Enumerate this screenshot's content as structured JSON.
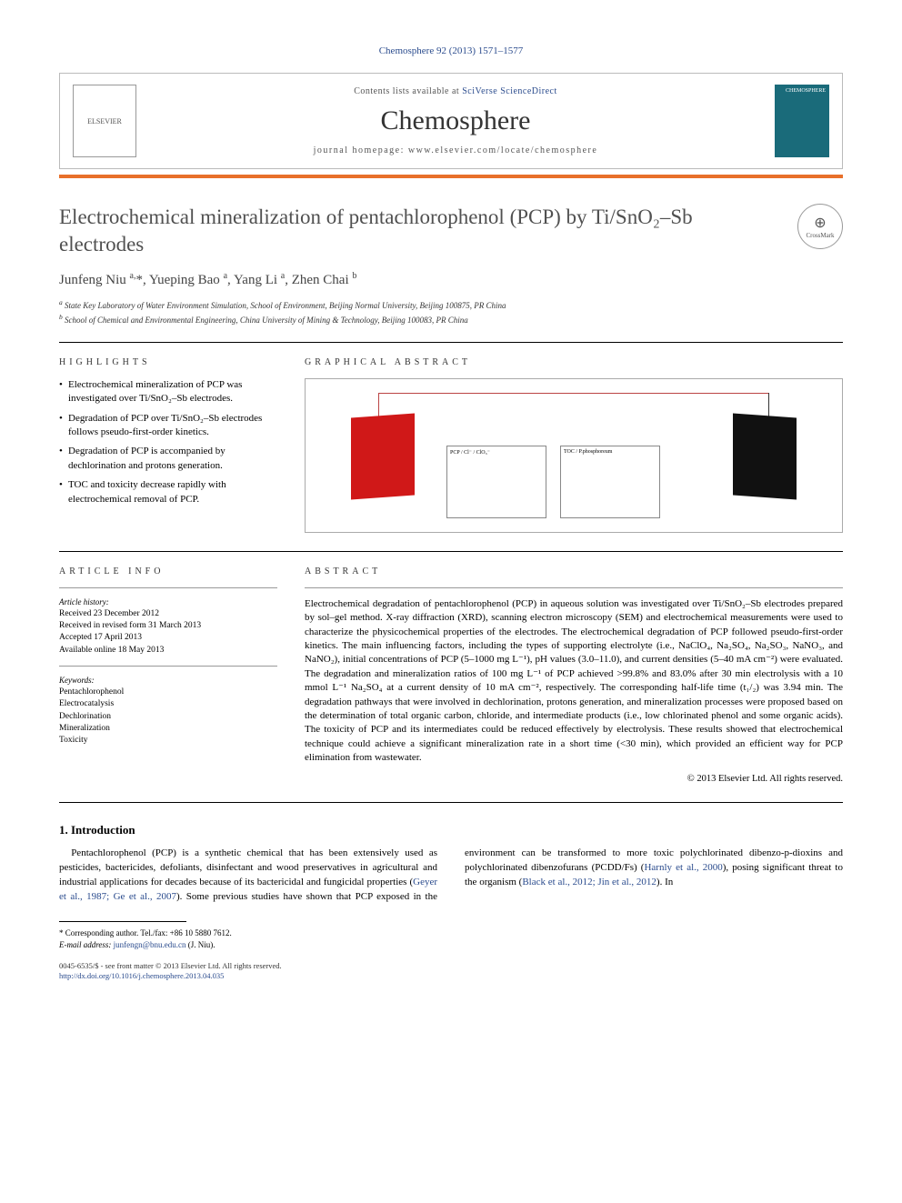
{
  "citation": "Chemosphere 92 (2013) 1571–1577",
  "header": {
    "contents_prefix": "Contents lists available at ",
    "contents_link": "SciVerse ScienceDirect",
    "journal": "Chemosphere",
    "homepage_prefix": "journal homepage: ",
    "homepage_url": "www.elsevier.com/locate/chemosphere",
    "publisher_logo_alt": "ELSEVIER",
    "cover_alt": "CHEMOSPHERE"
  },
  "title": "Electrochemical mineralization of pentachlorophenol (PCP) by Ti/SnO₂–Sb electrodes",
  "crossmark": "CrossMark",
  "authors_html": "Junfeng Niu <sup>a,</sup>*, Yueping Bao <sup>a</sup>, Yang Li <sup>a</sup>, Zhen Chai <sup>b</sup>",
  "affiliations": {
    "a": "State Key Laboratory of Water Environment Simulation, School of Environment, Beijing Normal University, Beijing 100875, PR China",
    "b": "School of Chemical and Environmental Engineering, China University of Mining & Technology, Beijing 100083, PR China"
  },
  "highlights": {
    "label": "HIGHLIGHTS",
    "items": [
      "Electrochemical mineralization of PCP was investigated over Ti/SnO₂–Sb electrodes.",
      "Degradation of PCP over Ti/SnO₂–Sb electrodes follows pseudo-first-order kinetics.",
      "Degradation of PCP is accompanied by dechlorination and protons generation.",
      "TOC and toxicity decrease rapidly with electrochemical removal of PCP."
    ]
  },
  "graphical_abstract": {
    "label": "GRAPHICAL ABSTRACT",
    "chart1_legend": "PCP / Cl⁻ / ClO₃⁻",
    "chart2_legend": "TOC / P.phosphoreum",
    "colors": {
      "anode": "#d01818",
      "cathode": "#111111",
      "wire": "#b44444",
      "border": "#aaaaaa"
    }
  },
  "article_info": {
    "label": "ARTICLE INFO",
    "history_head": "Article history:",
    "history": [
      "Received 23 December 2012",
      "Received in revised form 31 March 2013",
      "Accepted 17 April 2013",
      "Available online 18 May 2013"
    ],
    "keywords_head": "Keywords:",
    "keywords": [
      "Pentachlorophenol",
      "Electrocatalysis",
      "Dechlorination",
      "Mineralization",
      "Toxicity"
    ]
  },
  "abstract": {
    "label": "ABSTRACT",
    "text": "Electrochemical degradation of pentachlorophenol (PCP) in aqueous solution was investigated over Ti/SnO₂–Sb electrodes prepared by sol–gel method. X-ray diffraction (XRD), scanning electron microscopy (SEM) and electrochemical measurements were used to characterize the physicochemical properties of the electrodes. The electrochemical degradation of PCP followed pseudo-first-order kinetics. The main influencing factors, including the types of supporting electrolyte (i.e., NaClO₄, Na₂SO₄, Na₂SO₃, NaNO₃, and NaNO₂), initial concentrations of PCP (5–1000 mg L⁻¹), pH values (3.0–11.0), and current densities (5–40 mA cm⁻²) were evaluated. The degradation and mineralization ratios of 100 mg L⁻¹ of PCP achieved >99.8% and 83.0% after 30 min electrolysis with a 10 mmol L⁻¹ Na₂SO₄ at a current density of 10 mA cm⁻², respectively. The corresponding half-life time (t₁/₂) was 3.94 min. The degradation pathways that were involved in dechlorination, protons generation, and mineralization processes were proposed based on the determination of total organic carbon, chloride, and intermediate products (i.e., low chlorinated phenol and some organic acids). The toxicity of PCP and its intermediates could be reduced effectively by electrolysis. These results showed that electrochemical technique could achieve a significant mineralization rate in a short time (<30 min), which provided an efficient way for PCP elimination from wastewater.",
    "copyright": "© 2013 Elsevier Ltd. All rights reserved."
  },
  "introduction": {
    "heading": "1. Introduction",
    "para1": "Pentachlorophenol (PCP) is a synthetic chemical that has been extensively used as pesticides, bactericides, defoliants, disinfectant",
    "para2_a": "and wood preservatives in agricultural and industrial applications for decades because of its bactericidal and fungicidal properties (",
    "ref1": "Geyer et al., 1987; Ge et al., 2007",
    "para2_b": "). Some previous studies have shown that PCP exposed in the environment can be transformed to more toxic polychlorinated dibenzo-p-dioxins and polychlorinated dibenzofurans (PCDD/Fs) (",
    "ref2": "Harnly et al., 2000",
    "para2_c": "), posing significant threat to the organism (",
    "ref3": "Black et al., 2012; Jin et al., 2012",
    "para2_d": "). In"
  },
  "footer": {
    "corr_line1": "* Corresponding author. Tel./fax: +86 10 5880 7612.",
    "corr_line2_a": "E-mail address: ",
    "corr_email": "junfengn@bnu.edu.cn",
    "corr_line2_b": " (J. Niu).",
    "issn": "0045-6535/$ - see front matter © 2013 Elsevier Ltd. All rights reserved.",
    "doi": "http://dx.doi.org/10.1016/j.chemosphere.2013.04.035"
  }
}
